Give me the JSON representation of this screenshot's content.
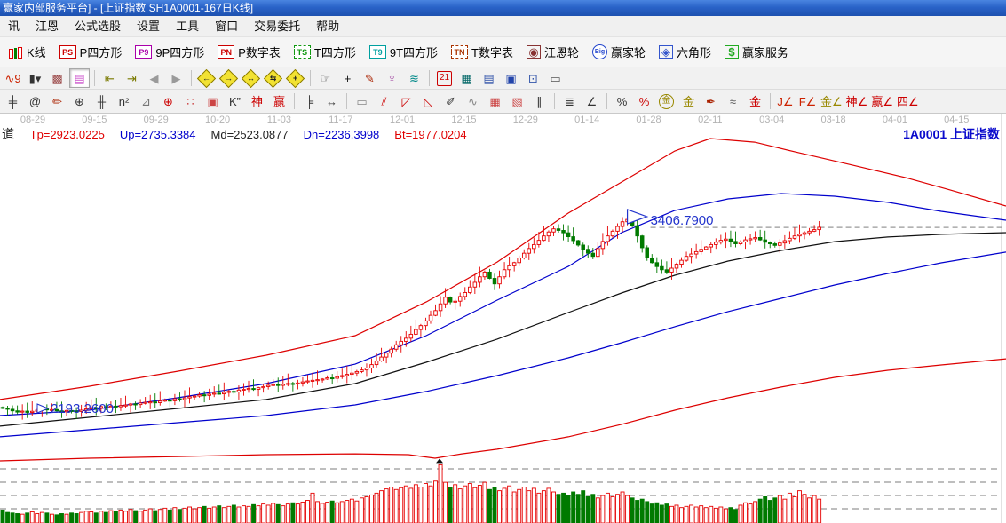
{
  "window": {
    "title": "赢家内部服务平台] - [上证指数  SH1A0001-167日K线]"
  },
  "menu": {
    "items": [
      "讯",
      "江恩",
      "公式选股",
      "设置",
      "工具",
      "窗口",
      "交易委托",
      "帮助"
    ]
  },
  "toolbar_main": {
    "items": [
      {
        "name": "kline-button",
        "chip": "candle",
        "label": "K线"
      },
      {
        "name": "p-square-button",
        "chip": "PS",
        "chip_color": "#cc0000",
        "label": "P四方形"
      },
      {
        "name": "nine-p-square-button",
        "chip": "P9",
        "chip_color": "#aa00aa",
        "label": "9P四方形"
      },
      {
        "name": "p-number-table-button",
        "chip": "PN",
        "chip_color": "#cc0000",
        "label": "P数字表"
      },
      {
        "name": "t-square-button",
        "chip": "TS",
        "chip_color": "#119911",
        "dashed": true,
        "label": "T四方形"
      },
      {
        "name": "nine-t-square-button",
        "chip": "T9",
        "chip_color": "#00a0a0",
        "label": "9T四方形"
      },
      {
        "name": "t-number-table-button",
        "chip": "TN",
        "chip_color": "#aa3300",
        "dashed": true,
        "label": "T数字表"
      },
      {
        "name": "gann-wheel-button",
        "chip": "◉",
        "plain": true,
        "chip_color": "#883333",
        "label": "江恩轮"
      },
      {
        "name": "winner-wheel-button",
        "chip": "Big",
        "round": true,
        "chip_color": "#2244cc",
        "label": "赢家轮"
      },
      {
        "name": "hexagon-button",
        "chip": "◈",
        "plain": true,
        "chip_color": "#3355cc",
        "label": "六角形"
      },
      {
        "name": "winner-service-button",
        "chip": "$",
        "plain": true,
        "chip_color": "#22aa22",
        "label": "赢家服务"
      }
    ]
  },
  "toolbar_nav": {
    "icons": [
      {
        "name": "kline-step-icon",
        "glyph": "∿9",
        "color": "#cc2200"
      },
      {
        "name": "candle-style-icon",
        "glyph": "▮▾",
        "color": "#333333"
      },
      {
        "name": "pattern-book-icon",
        "glyph": "▩",
        "color": "#994444"
      },
      {
        "name": "color-bars-icon",
        "glyph": "▤",
        "color": "#cc55cc",
        "pressed": true
      },
      {
        "sep": true
      },
      {
        "name": "jump-start-icon",
        "glyph": "⇤",
        "color": "#7a7a00"
      },
      {
        "name": "jump-end-icon",
        "glyph": "⇥",
        "color": "#7a7a00"
      },
      {
        "name": "step-back-icon",
        "glyph": "◀",
        "color": "#9a9a9a"
      },
      {
        "name": "step-forward-icon",
        "glyph": "▶",
        "color": "#9a9a9a"
      },
      {
        "sep": true
      },
      {
        "name": "pan-left-diamond-icon",
        "diamond": "←"
      },
      {
        "name": "pan-right-diamond-icon",
        "diamond": "→"
      },
      {
        "name": "zoom-h-diamond-icon",
        "diamond": "↔"
      },
      {
        "name": "zoom-compress-diamond-icon",
        "diamond": "⇆"
      },
      {
        "name": "zoom-all-diamond-icon",
        "diamond": "+"
      },
      {
        "sep": true
      },
      {
        "name": "hand-pan-icon",
        "glyph": "☞",
        "color": "#666666"
      },
      {
        "name": "crosshair-icon",
        "glyph": "+",
        "color": "#111111"
      },
      {
        "name": "angle-pen-icon",
        "glyph": "✎",
        "color": "#aa2200"
      },
      {
        "name": "gann-shape-icon",
        "glyph": "♆",
        "color": "#993399"
      },
      {
        "name": "wave-brain-icon",
        "glyph": "≋",
        "color": "#008888"
      },
      {
        "sep": true
      },
      {
        "name": "calendar-icon",
        "glyph": "21",
        "color": "#cc0000",
        "boxed": true
      },
      {
        "name": "calculator-icon",
        "glyph": "▦",
        "color": "#006666"
      },
      {
        "name": "notes-icon",
        "glyph": "▤",
        "color": "#3355aa"
      },
      {
        "name": "save-icon",
        "glyph": "▣",
        "color": "#2244aa"
      },
      {
        "name": "pc-search-icon",
        "glyph": "⊡",
        "color": "#3355aa"
      },
      {
        "name": "printer-icon",
        "glyph": "▭",
        "color": "#555555"
      }
    ]
  },
  "toolbar_draw": {
    "icons": [
      {
        "name": "h-ruler-icon",
        "glyph": "╪",
        "color": "#333333"
      },
      {
        "name": "spiral-icon",
        "glyph": "@",
        "color": "#333333"
      },
      {
        "name": "brush-icon",
        "glyph": "✏",
        "color": "#aa2200"
      },
      {
        "name": "gann-circle-icon",
        "glyph": "⊕",
        "color": "#333333"
      },
      {
        "name": "tick-marks-icon",
        "glyph": "╫",
        "color": "#333333"
      },
      {
        "name": "n-square-icon",
        "glyph": "n²",
        "color": "#333333"
      },
      {
        "name": "mirror-angle-icon",
        "glyph": "⊿",
        "color": "#777777"
      },
      {
        "name": "gann-target-icon",
        "glyph": "⊕",
        "color": "#cc0000"
      },
      {
        "name": "dot-grid-icon",
        "glyph": "∷",
        "color": "#cc4444"
      },
      {
        "name": "grid-box-icon",
        "glyph": "▣",
        "color": "#cc4444"
      },
      {
        "name": "k-double-prime-icon",
        "glyph": "K”",
        "color": "#333333"
      },
      {
        "name": "shen-grid-icon",
        "glyph": "神",
        "color": "#cc0000"
      },
      {
        "name": "ying-grid-icon",
        "glyph": "赢",
        "color": "#cc0000"
      },
      {
        "sep": true
      },
      {
        "name": "v-ruler-icon",
        "glyph": "╞",
        "color": "#333333"
      },
      {
        "name": "span-arrow-icon",
        "glyph": "↔",
        "color": "#333333"
      },
      {
        "sep": true
      },
      {
        "name": "rect-handles-icon",
        "glyph": "▭",
        "color": "#888888"
      },
      {
        "name": "fan-lines-icon",
        "glyph": "⫽",
        "color": "#cc0000"
      },
      {
        "name": "fan-box-icon",
        "glyph": "◸",
        "color": "#cc0000"
      },
      {
        "name": "diag-box-icon",
        "glyph": "◺",
        "color": "#cc0000"
      },
      {
        "name": "pen-rays-icon",
        "glyph": "✐",
        "color": "#333333"
      },
      {
        "name": "zigzag-icon",
        "glyph": "∿",
        "color": "#888888"
      },
      {
        "name": "red-grid-icon",
        "glyph": "▦",
        "color": "#cc4444"
      },
      {
        "name": "grid-arrow-icon",
        "glyph": "▧",
        "color": "#cc4444"
      },
      {
        "name": "parallel-lines-icon",
        "glyph": "∥",
        "color": "#333333"
      },
      {
        "sep": true
      },
      {
        "name": "measure-list-icon",
        "glyph": "≣",
        "color": "#333333"
      },
      {
        "name": "ratio-angle-icon",
        "glyph": "∠",
        "color": "#333333"
      },
      {
        "sep": true
      },
      {
        "name": "percent-icon",
        "glyph": "%",
        "color": "#333333"
      },
      {
        "name": "percent-line-icon",
        "glyph": "%",
        "color": "#cc0000",
        "underline": true
      },
      {
        "name": "gold-circle-icon",
        "glyph": "金",
        "color": "#998800",
        "circled": true
      },
      {
        "name": "gold-line-icon",
        "glyph": "金",
        "color": "#998800",
        "underline": true
      },
      {
        "name": "brush-flame-icon",
        "glyph": "✒",
        "color": "#aa2200"
      },
      {
        "name": "wave-line-icon",
        "glyph": "≈",
        "color": "#555555",
        "underline": true
      },
      {
        "name": "gold-red-icon",
        "glyph": "金",
        "color": "#cc0000",
        "underline": true
      },
      {
        "sep": true
      },
      {
        "name": "j-angle-icon",
        "glyph": "J∠",
        "color": "#cc2200"
      },
      {
        "name": "f-angle-icon",
        "glyph": "F∠",
        "color": "#cc2200"
      },
      {
        "name": "gold-angle-icon",
        "glyph": "金∠",
        "color": "#998800"
      },
      {
        "name": "shen-angle-icon",
        "glyph": "神∠",
        "color": "#cc0000"
      },
      {
        "name": "ying-angle-icon",
        "glyph": "赢∠",
        "color": "#cc0000"
      },
      {
        "name": "si-angle-icon",
        "glyph": "四∠",
        "color": "#cc0000"
      }
    ]
  },
  "chart": {
    "symbol_label": "1A0001 上证指数",
    "indicator": {
      "prefix": "道",
      "fields": [
        {
          "label": "Tp",
          "value": "2923.0225",
          "color": "#e00000"
        },
        {
          "label": "Up",
          "value": "2735.3384",
          "color": "#0000cc"
        },
        {
          "label": "Md",
          "value": "2523.0877",
          "color": "#222222"
        },
        {
          "label": "Dn",
          "value": "2236.3998",
          "color": "#0000cc"
        },
        {
          "label": "Bt",
          "value": "1977.0204",
          "color": "#e00000"
        }
      ]
    },
    "dates": [
      "08-29",
      "09-15",
      "09-29",
      "10-20",
      "11-03",
      "11-17",
      "12-01",
      "12-15",
      "12-29",
      "01-14",
      "01-28",
      "02-11",
      "03-04",
      "03-18",
      "04-01",
      "04-15"
    ],
    "annotations": {
      "high_label": "3406.7900",
      "low_label": "2193.2600"
    }
  },
  "chart_data": {
    "type": "candlestick",
    "title": "上证指数 SH1A0001 167日K线",
    "x_ticks": [
      "08-29",
      "09-15",
      "09-29",
      "10-20",
      "11-03",
      "11-17",
      "12-01",
      "12-15",
      "12-29",
      "01-14",
      "01-28",
      "02-11",
      "03-04",
      "03-18",
      "04-01",
      "04-15"
    ],
    "high_point": {
      "bar": 127,
      "price": 3406.79,
      "label": "3406.7900"
    },
    "low_point": {
      "bar": 7,
      "price": 2193.26,
      "label": "2193.2600"
    },
    "dashed_level": 3344,
    "volume_spike_bar": 89,
    "up_color": "#e60000",
    "down_color": "#007a00",
    "closes": [
      2195,
      2188,
      2178,
      2170,
      2176,
      2168,
      2175,
      2182,
      2190,
      2184,
      2186,
      2178,
      2172,
      2180,
      2176,
      2174,
      2182,
      2190,
      2198,
      2194,
      2205,
      2200,
      2208,
      2204,
      2212,
      2215,
      2222,
      2218,
      2228,
      2232,
      2235,
      2230,
      2240,
      2246,
      2242,
      2255,
      2250,
      2260,
      2268,
      2272,
      2280,
      2276,
      2284,
      2290,
      2286,
      2295,
      2302,
      2298,
      2310,
      2315,
      2320,
      2315,
      2325,
      2332,
      2340,
      2345,
      2340,
      2348,
      2352,
      2350,
      2355,
      2362,
      2368,
      2372,
      2376,
      2380,
      2388,
      2385,
      2395,
      2402,
      2410,
      2418,
      2428,
      2438,
      2450,
      2472,
      2495,
      2520,
      2545,
      2570,
      2598,
      2620,
      2640,
      2665,
      2695,
      2720,
      2750,
      2785,
      2815,
      2858,
      2900,
      2870,
      2875,
      2905,
      2930,
      2965,
      2995,
      3030,
      3060,
      3020,
      2985,
      3030,
      3075,
      3100,
      3120,
      3150,
      3180,
      3210,
      3235,
      3262,
      3290,
      3315,
      3335,
      3325,
      3310,
      3285,
      3260,
      3232,
      3205,
      3180,
      3160,
      3210,
      3255,
      3290,
      3320,
      3350,
      3380,
      3395,
      3355,
      3290,
      3215,
      3150,
      3120,
      3095,
      3075,
      3060,
      3085,
      3110,
      3135,
      3160,
      3175,
      3190,
      3205,
      3220,
      3235,
      3250,
      3262,
      3270,
      3255,
      3240,
      3252,
      3265,
      3272,
      3280,
      3265,
      3250,
      3240,
      3230,
      3245,
      3260,
      3275,
      3290,
      3300,
      3310,
      3320,
      3330,
      3345
    ],
    "volumes": [
      0.2,
      0.16,
      0.15,
      0.14,
      0.13,
      0.15,
      0.17,
      0.14,
      0.16,
      0.15,
      0.13,
      0.12,
      0.14,
      0.13,
      0.15,
      0.14,
      0.16,
      0.18,
      0.17,
      0.15,
      0.18,
      0.16,
      0.19,
      0.17,
      0.2,
      0.18,
      0.21,
      0.19,
      0.18,
      0.2,
      0.22,
      0.19,
      0.21,
      0.23,
      0.2,
      0.24,
      0.21,
      0.23,
      0.25,
      0.22,
      0.24,
      0.26,
      0.23,
      0.25,
      0.27,
      0.24,
      0.26,
      0.28,
      0.25,
      0.27,
      0.26,
      0.29,
      0.27,
      0.3,
      0.28,
      0.31,
      0.29,
      0.27,
      0.3,
      0.32,
      0.3,
      0.33,
      0.36,
      0.48,
      0.34,
      0.31,
      0.33,
      0.35,
      0.32,
      0.34,
      0.36,
      0.38,
      0.35,
      0.4,
      0.42,
      0.45,
      0.48,
      0.52,
      0.55,
      0.58,
      0.54,
      0.57,
      0.6,
      0.56,
      0.62,
      0.58,
      0.64,
      0.6,
      0.68,
      0.95,
      0.66,
      0.58,
      0.62,
      0.55,
      0.6,
      0.64,
      0.57,
      0.61,
      0.66,
      0.54,
      0.58,
      0.52,
      0.56,
      0.6,
      0.5,
      0.54,
      0.58,
      0.52,
      0.56,
      0.48,
      0.52,
      0.56,
      0.5,
      0.46,
      0.48,
      0.44,
      0.5,
      0.46,
      0.52,
      0.42,
      0.46,
      0.4,
      0.44,
      0.48,
      0.42,
      0.46,
      0.5,
      0.44,
      0.4,
      0.36,
      0.38,
      0.34,
      0.3,
      0.32,
      0.28,
      0.3,
      0.26,
      0.28,
      0.24,
      0.26,
      0.28,
      0.25,
      0.27,
      0.24,
      0.26,
      0.23,
      0.25,
      0.22,
      0.24,
      0.21,
      0.28,
      0.32,
      0.3,
      0.34,
      0.38,
      0.42,
      0.36,
      0.4,
      0.44,
      0.38,
      0.48,
      0.42,
      0.52,
      0.46,
      0.4,
      0.44,
      0.38
    ],
    "lines": {
      "Tp": {
        "color": "#dd0000",
        "points": [
          [
            0,
            2250
          ],
          [
            100,
            2334
          ],
          [
            200,
            2430
          ],
          [
            300,
            2532
          ],
          [
            400,
            2656
          ],
          [
            480,
            2870
          ],
          [
            560,
            3124
          ],
          [
            640,
            3435
          ],
          [
            700,
            3632
          ],
          [
            760,
            3830
          ],
          [
            800,
            3909
          ],
          [
            850,
            3886
          ],
          [
            900,
            3818
          ],
          [
            960,
            3740
          ],
          [
            1020,
            3660
          ],
          [
            1070,
            3582
          ],
          [
            1133,
            3480
          ]
        ]
      },
      "Up": {
        "color": "#0000cc",
        "points": [
          [
            0,
            2148
          ],
          [
            100,
            2182
          ],
          [
            200,
            2261
          ],
          [
            300,
            2351
          ],
          [
            400,
            2475
          ],
          [
            480,
            2656
          ],
          [
            560,
            2882
          ],
          [
            640,
            3096
          ],
          [
            700,
            3311
          ],
          [
            760,
            3452
          ],
          [
            820,
            3525
          ],
          [
            880,
            3559
          ],
          [
            940,
            3542
          ],
          [
            1000,
            3503
          ],
          [
            1060,
            3446
          ],
          [
            1133,
            3390
          ]
        ]
      },
      "Md": {
        "color": "#111111",
        "points": [
          [
            0,
            2081
          ],
          [
            100,
            2137
          ],
          [
            200,
            2193
          ],
          [
            300,
            2250
          ],
          [
            400,
            2351
          ],
          [
            480,
            2487
          ],
          [
            560,
            2634
          ],
          [
            640,
            2803
          ],
          [
            700,
            2927
          ],
          [
            760,
            3040
          ],
          [
            820,
            3130
          ],
          [
            880,
            3198
          ],
          [
            940,
            3254
          ],
          [
            1000,
            3283
          ],
          [
            1060,
            3300
          ],
          [
            1133,
            3311
          ]
        ]
      },
      "Dn": {
        "color": "#0000cc",
        "points": [
          [
            0,
            2013
          ],
          [
            100,
            2058
          ],
          [
            200,
            2103
          ],
          [
            300,
            2148
          ],
          [
            400,
            2216
          ],
          [
            480,
            2301
          ],
          [
            560,
            2402
          ],
          [
            640,
            2515
          ],
          [
            700,
            2611
          ],
          [
            760,
            2713
          ],
          [
            820,
            2809
          ],
          [
            880,
            2893
          ],
          [
            940,
            2978
          ],
          [
            1000,
            3051
          ],
          [
            1060,
            3119
          ],
          [
            1133,
            3187
          ]
        ]
      },
      "Bt": {
        "color": "#dd0000",
        "points": [
          [
            0,
            1860
          ],
          [
            100,
            1877
          ],
          [
            200,
            1888
          ],
          [
            300,
            1900
          ],
          [
            400,
            1905
          ],
          [
            460,
            1900
          ],
          [
            490,
            1877
          ],
          [
            520,
            1905
          ],
          [
            560,
            1934
          ],
          [
            640,
            2013
          ],
          [
            700,
            2092
          ],
          [
            760,
            2182
          ],
          [
            820,
            2261
          ],
          [
            880,
            2329
          ],
          [
            940,
            2391
          ],
          [
            1000,
            2436
          ],
          [
            1060,
            2470
          ],
          [
            1133,
            2509
          ]
        ]
      }
    }
  }
}
